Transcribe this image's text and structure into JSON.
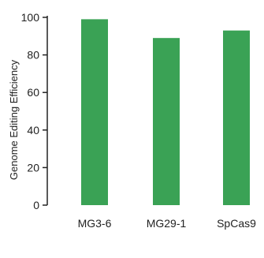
{
  "chart_data": {
    "type": "bar",
    "categories": [
      "MG3-6",
      "MG29-1",
      "SpCas9"
    ],
    "values": [
      99,
      89,
      93
    ],
    "ylabel": "Genome Editing Efficiency",
    "xlabel": "",
    "title": "",
    "ylim": [
      0,
      100
    ],
    "yticks": [
      "0",
      "20",
      "40",
      "60",
      "80",
      "100"
    ],
    "bar_color": "#3aa255",
    "axis_color": "#222222",
    "grid": false
  }
}
